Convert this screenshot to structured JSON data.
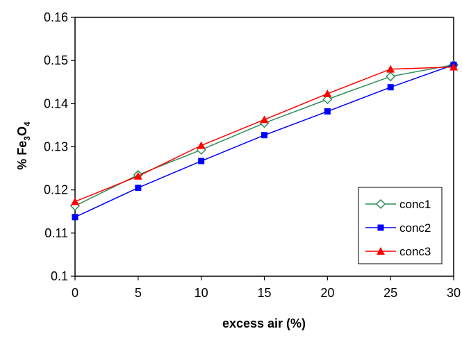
{
  "chart_data": {
    "type": "line",
    "title": "",
    "xlabel": "excess air (%)",
    "ylabel_prefix": "% Fe",
    "ylabel_sub1": "3",
    "ylabel_mid": "O",
    "ylabel_sub2": "4",
    "x": [
      0,
      5,
      10,
      15,
      20,
      25,
      30
    ],
    "xlim": [
      0,
      30
    ],
    "ylim": [
      0.1,
      0.16
    ],
    "xticks": [
      0,
      5,
      10,
      15,
      20,
      25,
      30
    ],
    "yticks": [
      0.1,
      0.11,
      0.12,
      0.13,
      0.14,
      0.15,
      0.16
    ],
    "ytick_labels": [
      "0.1",
      "0.11",
      "0.12",
      "0.13",
      "0.14",
      "0.15",
      "0.16"
    ],
    "grid": false,
    "legend_position": "bottom-right",
    "series": [
      {
        "name": "conc1",
        "color": "#2e8b57",
        "marker": "diamond-open",
        "values": [
          0.1163,
          0.1235,
          0.1293,
          0.1355,
          0.141,
          0.1463,
          0.149
        ]
      },
      {
        "name": "conc2",
        "color": "#0000ff",
        "marker": "square",
        "values": [
          0.1137,
          0.1205,
          0.1267,
          0.1327,
          0.1382,
          0.1438,
          0.149
        ]
      },
      {
        "name": "conc3",
        "color": "#ff0000",
        "marker": "triangle",
        "values": [
          0.1173,
          0.1232,
          0.1303,
          0.1363,
          0.1423,
          0.148,
          0.1485
        ]
      }
    ]
  }
}
